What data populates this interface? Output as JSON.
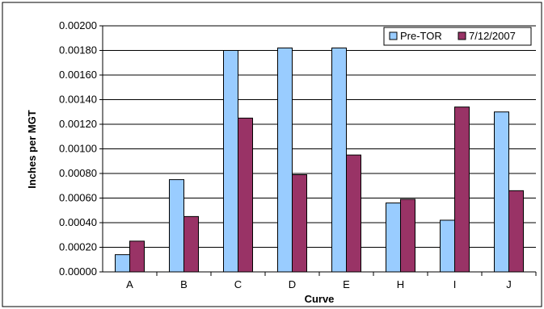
{
  "chart_data": {
    "type": "bar",
    "title": "",
    "xlabel": "Curve",
    "ylabel": "Inches per MGT",
    "categories": [
      "A",
      "B",
      "C",
      "D",
      "E",
      "H",
      "I",
      "J"
    ],
    "series": [
      {
        "name": "Pre-TOR",
        "color": "#99ccff",
        "values": [
          0.00014,
          0.00075,
          0.0018,
          0.00182,
          0.00182,
          0.00056,
          0.00042,
          0.0013
        ]
      },
      {
        "name": "7/12/2007",
        "color": "#993366",
        "values": [
          0.00025,
          0.00045,
          0.00125,
          0.00079,
          0.00095,
          0.00059,
          0.00134,
          0.00066
        ]
      }
    ],
    "ylim": [
      0,
      0.002
    ],
    "yticks": [
      "0.00000",
      "0.00020",
      "0.00040",
      "0.00060",
      "0.00080",
      "0.00100",
      "0.00120",
      "0.00140",
      "0.00160",
      "0.00180",
      "0.00200"
    ],
    "grid": true,
    "legend_position": "top-right"
  }
}
